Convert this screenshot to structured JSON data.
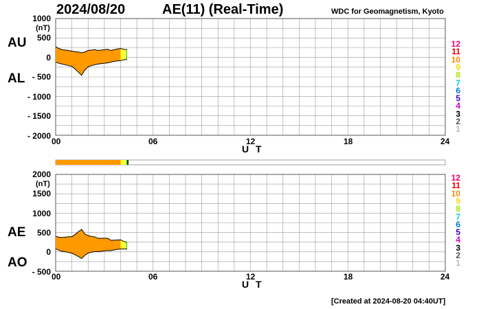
{
  "header": {
    "date": "2024/08/20",
    "title": "AE(11) (Real-Time)",
    "credit": "WDC for Geomagnetism, Kyoto",
    "created": "[Created at 2024-08-20 04:40UT]"
  },
  "legend": {
    "labels": [
      "12",
      "11",
      "10",
      "9",
      "8",
      "7",
      "6",
      "5",
      "4",
      "3",
      "2",
      "1"
    ],
    "colors": [
      "#e6006e",
      "#e60000",
      "#ff8c00",
      "#f5d800",
      "#a8e600",
      "#00d2d2",
      "#0078dc",
      "#3c00c8",
      "#c800c8",
      "#000000",
      "#555555",
      "#bbbbbb"
    ]
  },
  "chart_data": [
    {
      "type": "area",
      "series_labels": [
        "AU",
        "AL"
      ],
      "ylabel_unit": "(nT)",
      "xlabel": "U T",
      "xlim": [
        0,
        24
      ],
      "ylim": [
        -2000,
        1000
      ],
      "y_ticks": [
        "1000",
        "500",
        "0",
        "- 500",
        "- 1000",
        "- 1500",
        "- 2000"
      ],
      "x_ticks": [
        "00",
        "06",
        "12",
        "18",
        "24"
      ],
      "fill_segments": [
        {
          "from": 0,
          "to": 4.0,
          "color": "#ff9900"
        },
        {
          "from": 4.0,
          "to": 4.35,
          "color": "#ffff33"
        },
        {
          "from": 4.35,
          "to": 4.45,
          "color": "#33cc33"
        }
      ],
      "x": [
        0,
        0.2,
        0.4,
        0.6,
        0.8,
        1.0,
        1.2,
        1.4,
        1.6,
        1.8,
        2.0,
        2.2,
        2.4,
        2.6,
        2.8,
        3.0,
        3.2,
        3.4,
        3.6,
        3.8,
        4.0,
        4.2,
        4.4
      ],
      "au": [
        280,
        230,
        200,
        190,
        180,
        160,
        150,
        140,
        120,
        140,
        180,
        190,
        200,
        180,
        190,
        200,
        210,
        180,
        200,
        220,
        230,
        210,
        200
      ],
      "al": [
        -120,
        -150,
        -170,
        -190,
        -210,
        -230,
        -300,
        -380,
        -460,
        -320,
        -240,
        -210,
        -190,
        -170,
        -160,
        -150,
        -140,
        -120,
        -100,
        -90,
        -80,
        -60,
        -50
      ]
    },
    {
      "type": "area",
      "series_labels": [
        "AE",
        "AO"
      ],
      "ylabel_unit": "(nT)",
      "xlabel": "U T",
      "xlim": [
        0,
        24
      ],
      "ylim": [
        -500,
        2000
      ],
      "y_ticks": [
        "2000",
        "1500",
        "1000",
        "500",
        "0",
        "- 500"
      ],
      "x_ticks": [
        "00",
        "06",
        "12",
        "18",
        "24"
      ],
      "fill_segments": [
        {
          "from": 0,
          "to": 4.0,
          "color": "#ff9900"
        },
        {
          "from": 4.0,
          "to": 4.35,
          "color": "#ffff33"
        },
        {
          "from": 4.35,
          "to": 4.45,
          "color": "#33cc33"
        }
      ],
      "x": [
        0,
        0.2,
        0.4,
        0.6,
        0.8,
        1.0,
        1.2,
        1.4,
        1.6,
        1.8,
        2.0,
        2.2,
        2.4,
        2.6,
        2.8,
        3.0,
        3.2,
        3.4,
        3.6,
        3.8,
        4.0,
        4.2,
        4.4
      ],
      "ae": [
        400,
        380,
        370,
        380,
        390,
        390,
        450,
        520,
        580,
        460,
        420,
        400,
        390,
        350,
        350,
        350,
        350,
        300,
        300,
        310,
        310,
        270,
        250
      ],
      "ao": [
        80,
        40,
        15,
        0,
        -15,
        -35,
        -75,
        -120,
        -170,
        -90,
        -30,
        -10,
        5,
        5,
        15,
        25,
        35,
        30,
        50,
        65,
        75,
        75,
        75
      ]
    }
  ],
  "status_bar": {
    "segments": [
      {
        "from": 0,
        "to": 4.0,
        "color": "#ff9900"
      },
      {
        "from": 4.0,
        "to": 4.35,
        "color": "#ffff33"
      },
      {
        "from": 4.35,
        "to": 4.45,
        "color": "#33cc33"
      }
    ]
  }
}
